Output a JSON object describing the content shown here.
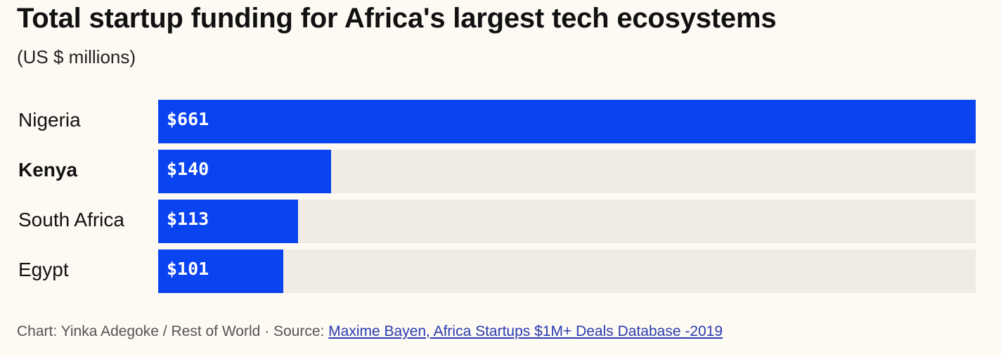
{
  "title": "Total startup funding for Africa's largest tech ecosystems",
  "subtitle": "(US $ millions)",
  "footer": {
    "credit": "Chart: Yinka Adegoke / Rest of World · Source: ",
    "source_link": "Maxime Bayen, Africa Startups $1M+ Deals Database -2019"
  },
  "colors": {
    "bar": "#0a44f0",
    "track": "#f0ebe4",
    "background": "#fdf9f3"
  },
  "chart_data": {
    "type": "bar",
    "orientation": "horizontal",
    "title": "Total startup funding for Africa's largest tech ecosystems",
    "subtitle": "(US $ millions)",
    "categories": [
      "Nigeria",
      "Kenya",
      "South Africa",
      "Egypt"
    ],
    "values": [
      661,
      140,
      113,
      101
    ],
    "value_labels": [
      "$661",
      "$140",
      "$113",
      "$101"
    ],
    "highlighted_category": "Kenya",
    "xlim": [
      0,
      661
    ],
    "grid": false,
    "legend": "none"
  }
}
